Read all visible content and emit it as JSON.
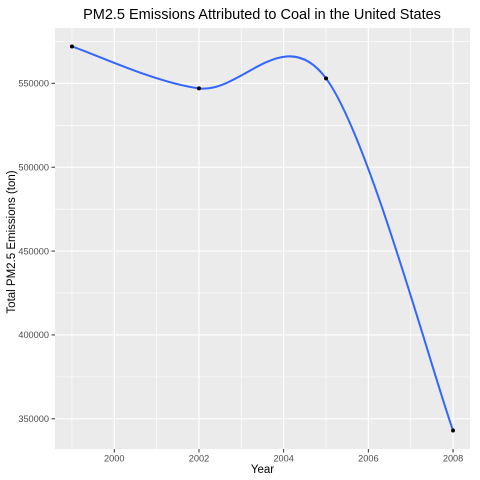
{
  "chart_data": {
    "type": "line",
    "title": "PM2.5 Emissions Attributed to Coal in the United States",
    "xlabel": "Year",
    "ylabel": "Total PM2.5 Emissions (ton)",
    "x": [
      1999,
      2002,
      2005,
      2008
    ],
    "series": [
      {
        "values": [
          572000,
          547000,
          553000,
          343000
        ]
      }
    ],
    "smooth": true,
    "xlim": [
      1998.6,
      2008.4
    ],
    "ylim": [
      332000,
      583000
    ],
    "x_ticks": [
      2000,
      2002,
      2004,
      2006,
      2008
    ],
    "x_minor_ticks": [
      1999,
      2001,
      2003,
      2005,
      2007
    ],
    "y_ticks": [
      350000,
      400000,
      450000,
      500000,
      550000
    ],
    "y_tick_labels": [
      "350000",
      "400000",
      "450000",
      "500000",
      "550000"
    ],
    "y_minor_ticks": [
      375000,
      425000,
      475000,
      525000,
      575000
    ],
    "grid": true,
    "legend": "none",
    "colors": {
      "panel": "#ebebeb",
      "grid": "#ffffff",
      "line": "#3366ff",
      "point": "#000000"
    }
  }
}
